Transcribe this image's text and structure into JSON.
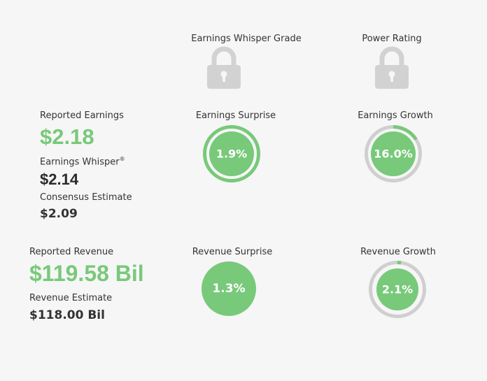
{
  "headers": {
    "whisper_grade": "Earnings Whisper Grade",
    "power_rating": "Power Rating"
  },
  "icons": {
    "locked": "lock-icon"
  },
  "earnings": {
    "reported_label": "Reported Earnings",
    "reported_value": "$2.18",
    "whisper_label": "Earnings Whisper",
    "whisper_mark": "®",
    "whisper_value": "$2.14",
    "consensus_label": "Consensus Estimate",
    "consensus_value": "$2.09"
  },
  "earnings_surprise": {
    "label": "Earnings Surprise",
    "value": "1.9%",
    "percent": 1.9
  },
  "earnings_growth": {
    "label": "Earnings Growth",
    "value": "16.0%",
    "percent": 16.0
  },
  "revenue": {
    "reported_label": "Reported Revenue",
    "reported_value": "$119.58 Bil",
    "estimate_label": "Revenue Estimate",
    "estimate_value": "$118.00 Bil"
  },
  "revenue_surprise": {
    "label": "Revenue Surprise",
    "value": "1.3%",
    "percent": 1.3
  },
  "revenue_growth": {
    "label": "Revenue Growth",
    "value": "2.1%",
    "percent": 2.1
  },
  "colors": {
    "green": "#78c97a",
    "gray_ring": "#cfcfcf",
    "lock": "#d2d2d2",
    "background": "#f6f6f6"
  }
}
